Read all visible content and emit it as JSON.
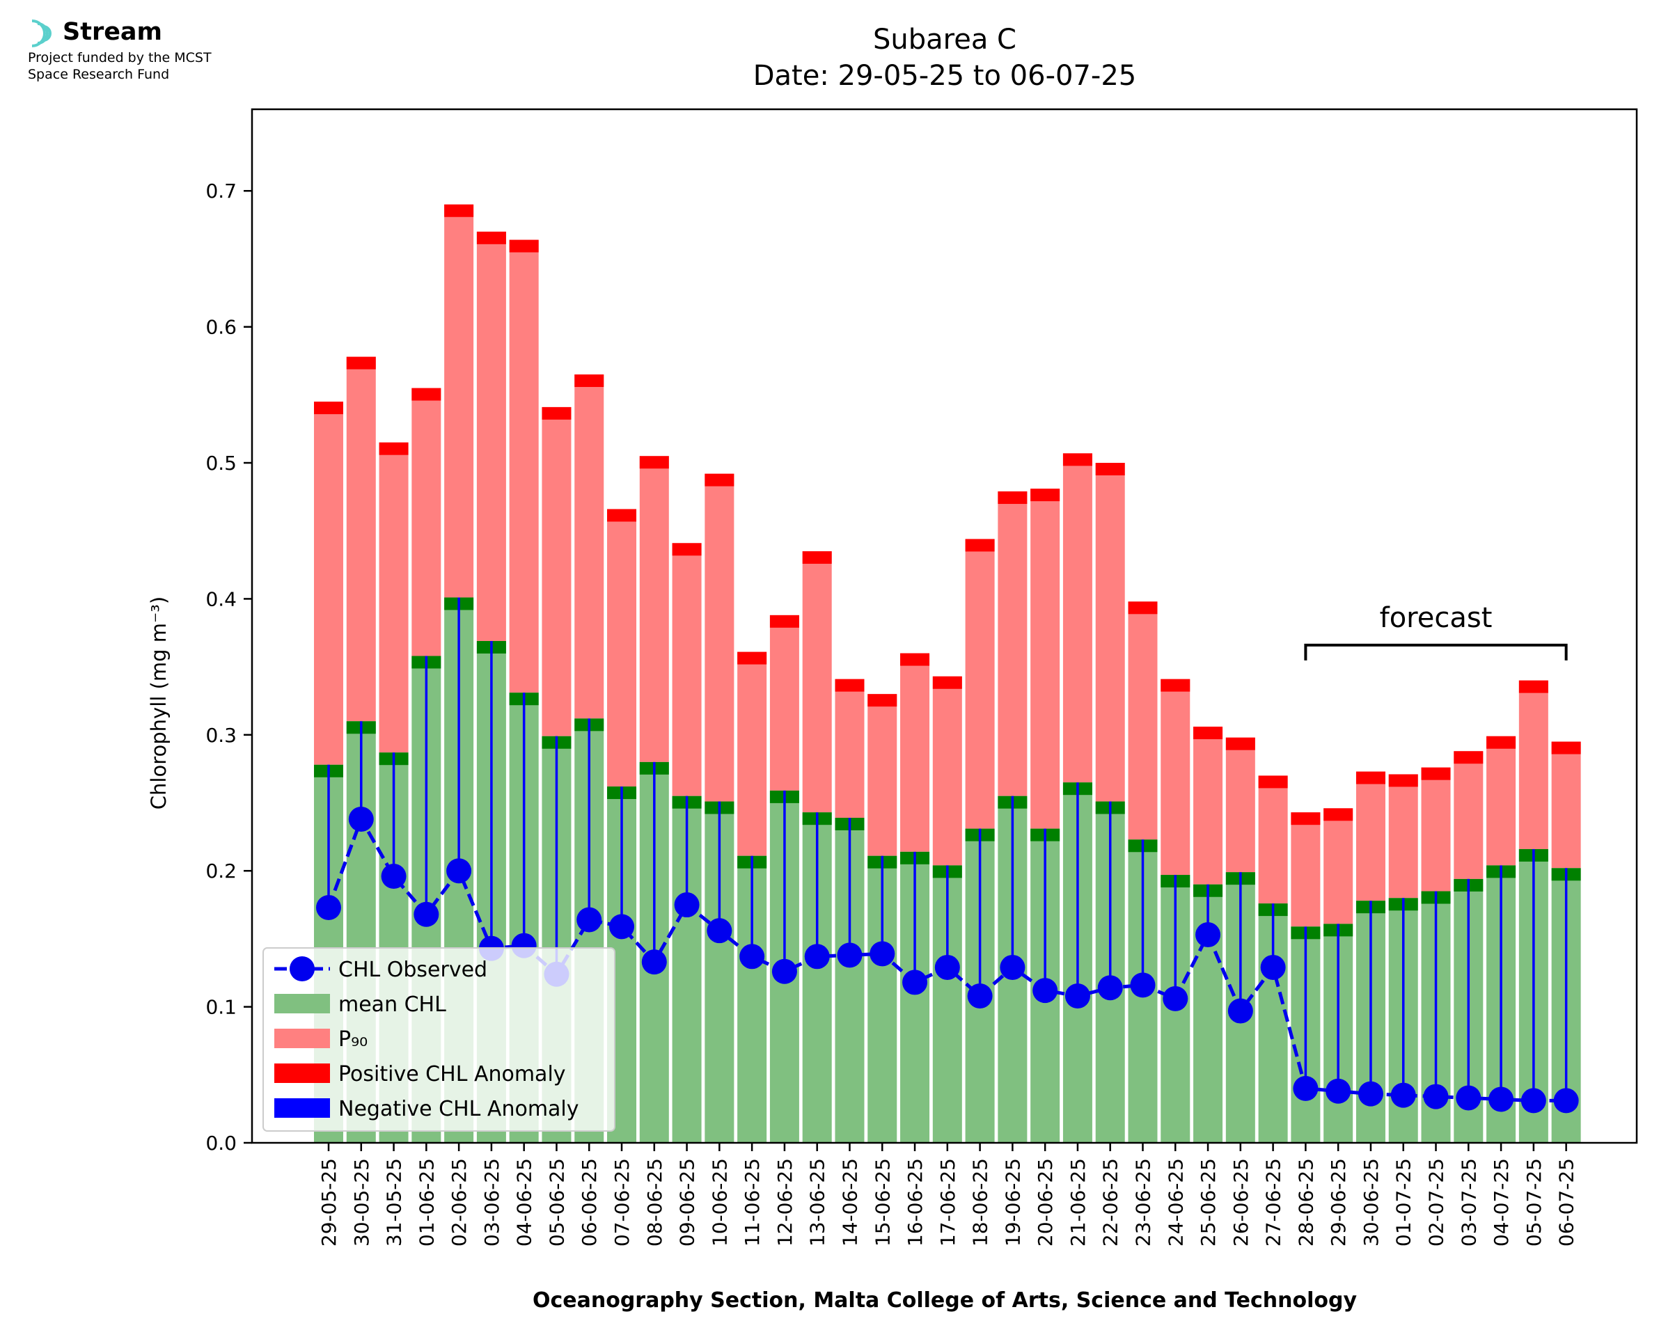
{
  "logo": {
    "name": "Stream",
    "line1": "Project funded by the MCST",
    "line2": "Space Research Fund",
    "icon": "stream-logo-icon"
  },
  "chart_data": {
    "type": "bar",
    "title": "Subarea C",
    "subtitle": "Date: 29-05-25 to 06-07-25",
    "xlabel": "Oceanography Section, Malta College of Arts, Science and Technology",
    "ylabel": "Chlorophyll (mg m⁻³)",
    "ylim": [
      0,
      0.76
    ],
    "yticks": [
      "0.0",
      "0.1",
      "0.2",
      "0.3",
      "0.4",
      "0.5",
      "0.6",
      "0.7"
    ],
    "grid": false,
    "legend_position": "lower-left",
    "categories": [
      "29-05-25",
      "30-05-25",
      "31-05-25",
      "01-06-25",
      "02-06-25",
      "03-06-25",
      "04-06-25",
      "05-06-25",
      "06-06-25",
      "07-06-25",
      "08-06-25",
      "09-06-25",
      "10-06-25",
      "11-06-25",
      "12-06-25",
      "13-06-25",
      "14-06-25",
      "15-06-25",
      "16-06-25",
      "17-06-25",
      "18-06-25",
      "19-06-25",
      "20-06-25",
      "21-06-25",
      "22-06-25",
      "23-06-25",
      "24-06-25",
      "25-06-25",
      "26-06-25",
      "27-06-25",
      "28-06-25",
      "29-06-25",
      "30-06-25",
      "01-07-25",
      "02-07-25",
      "03-07-25",
      "04-07-25",
      "05-07-25",
      "06-07-25"
    ],
    "series": [
      {
        "name": "CHL Observed",
        "type": "line",
        "color": "#0000ee",
        "values": [
          0.173,
          0.238,
          0.196,
          0.168,
          0.2,
          0.143,
          0.145,
          0.124,
          0.164,
          0.159,
          0.133,
          0.175,
          0.156,
          0.137,
          0.126,
          0.137,
          0.138,
          0.139,
          0.118,
          0.129,
          0.108,
          0.129,
          0.112,
          0.108,
          0.114,
          0.116,
          0.106,
          0.153,
          0.097,
          0.129,
          0.04,
          0.038,
          0.036,
          0.035,
          0.034,
          0.033,
          0.032,
          0.031,
          0.031
        ]
      },
      {
        "name": "mean CHL",
        "type": "bar",
        "color": "#80c080",
        "values": [
          0.278,
          0.31,
          0.287,
          0.358,
          0.401,
          0.369,
          0.331,
          0.299,
          0.312,
          0.262,
          0.28,
          0.255,
          0.251,
          0.211,
          0.259,
          0.243,
          0.239,
          0.211,
          0.214,
          0.204,
          0.231,
          0.255,
          0.231,
          0.265,
          0.251,
          0.223,
          0.197,
          0.19,
          0.199,
          0.176,
          0.159,
          0.161,
          0.178,
          0.18,
          0.185,
          0.194,
          0.204,
          0.216,
          0.202
        ]
      },
      {
        "name": "P₉₀",
        "type": "bar",
        "color": "#ff8080",
        "values": [
          0.545,
          0.578,
          0.515,
          0.555,
          0.69,
          0.67,
          0.664,
          0.541,
          0.565,
          0.466,
          0.505,
          0.441,
          0.492,
          0.361,
          0.388,
          0.435,
          0.341,
          0.33,
          0.36,
          0.343,
          0.444,
          0.479,
          0.481,
          0.507,
          0.5,
          0.398,
          0.341,
          0.306,
          0.298,
          0.27,
          0.243,
          0.246,
          0.273,
          0.271,
          0.276,
          0.288,
          0.299,
          0.34,
          0.295
        ]
      },
      {
        "name": "Positive CHL Anomaly",
        "type": "bar",
        "color": "#ff0000"
      },
      {
        "name": "Negative CHL Anomaly",
        "type": "bar",
        "color": "#0000ff"
      }
    ],
    "mean_cap_color": "#008000",
    "annotation": {
      "text": "forecast",
      "from": "28-06-25",
      "to": "06-07-25",
      "y": 0.366
    }
  }
}
